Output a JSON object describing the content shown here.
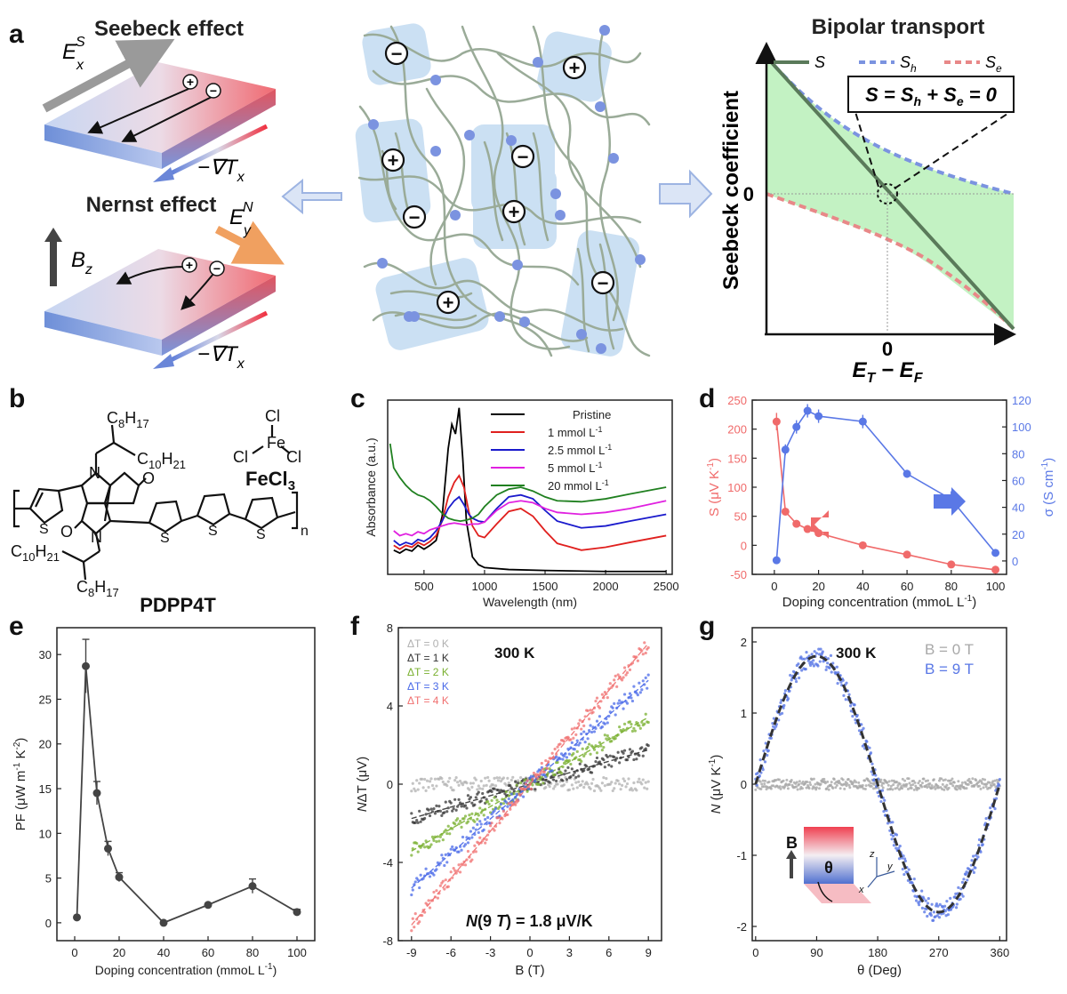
{
  "panel_labels": [
    "a",
    "b",
    "c",
    "d",
    "e",
    "f",
    "g"
  ],
  "panel_a": {
    "seebeck_title": "Seebeck effect",
    "nernst_title": "Nernst effect",
    "field_Ex": "E",
    "field_Ex_sup": "S",
    "field_Ex_sub": "x",
    "field_Ey": "E",
    "field_Ey_sup": "N",
    "field_Ey_sub": "y",
    "grad_T": "−∇T",
    "grad_T_sub": "x",
    "field_B": "B",
    "field_B_sub": "z",
    "plus_sign": "+",
    "minus_sign": "−",
    "bipolar_title": "Bipolar transport",
    "legend": [
      "S",
      "S",
      "S"
    ],
    "legend_sub": [
      "",
      "h",
      "e"
    ],
    "equation": "S = S",
    "equation_parts": [
      "S = S",
      "h",
      " + S",
      "e",
      " = 0"
    ],
    "ylabel": "Seebeck coefficient",
    "yzero": "0",
    "xzero": "0",
    "xlabel_parts": [
      "E",
      "T",
      " − E",
      "F"
    ],
    "colors": {
      "S": "#5a7a5a",
      "Sh": "#7b93e0",
      "Se": "#e88888",
      "fill": "#b8f0b8"
    }
  },
  "panel_b": {
    "polymer_name": "PDPP4T",
    "dopant_name": "FeCl",
    "dopant_sub": "3",
    "cl": "Cl",
    "fe": "Fe",
    "side_chain_1": "C",
    "c8h17": [
      "C",
      "8",
      "H",
      "17"
    ],
    "c10h21": [
      "C",
      "10",
      "H",
      "21"
    ],
    "s_atom": "S",
    "n_atom": "N",
    "o_atom": "O",
    "repeat_n": "n"
  },
  "chart_data": [
    {
      "id": "c",
      "type": "line",
      "xlabel": "Wavelength (nm)",
      "ylabel": "Absorbance (a.u.)",
      "xlim": [
        200,
        2550
      ],
      "xticks": [
        500,
        1000,
        1500,
        2000,
        2500
      ],
      "series": [
        {
          "name": "Pristine",
          "color": "#000000",
          "x": [
            250,
            300,
            350,
            400,
            450,
            500,
            550,
            600,
            650,
            700,
            730,
            760,
            790,
            820,
            850,
            900,
            950,
            1000,
            1200,
            1500,
            2000,
            2500
          ],
          "y": [
            0.25,
            0.22,
            0.26,
            0.24,
            0.3,
            0.26,
            0.3,
            0.35,
            0.6,
            1.3,
            1.55,
            1.45,
            1.72,
            1.2,
            0.55,
            0.18,
            0.1,
            0.07,
            0.05,
            0.04,
            0.03,
            0.03
          ]
        },
        {
          "name": "1 mmol L-1",
          "color": "#e0201e",
          "x": [
            250,
            300,
            350,
            400,
            450,
            500,
            550,
            600,
            650,
            700,
            750,
            790,
            830,
            870,
            900,
            950,
            1000,
            1100,
            1200,
            1300,
            1400,
            1500,
            1600,
            1800,
            2000,
            2200,
            2500
          ],
          "y": [
            0.3,
            0.26,
            0.3,
            0.28,
            0.33,
            0.3,
            0.34,
            0.4,
            0.55,
            0.8,
            0.95,
            1.02,
            0.9,
            0.65,
            0.5,
            0.4,
            0.38,
            0.52,
            0.65,
            0.68,
            0.6,
            0.45,
            0.32,
            0.25,
            0.28,
            0.33,
            0.4
          ]
        },
        {
          "name": "2.5 mmol L-1",
          "color": "#1a1acc",
          "x": [
            250,
            300,
            350,
            400,
            450,
            500,
            550,
            600,
            650,
            700,
            750,
            790,
            830,
            870,
            900,
            950,
            1000,
            1100,
            1200,
            1300,
            1400,
            1500,
            1600,
            1800,
            2000,
            2200,
            2500
          ],
          "y": [
            0.35,
            0.3,
            0.33,
            0.31,
            0.36,
            0.34,
            0.38,
            0.45,
            0.55,
            0.68,
            0.76,
            0.8,
            0.72,
            0.62,
            0.58,
            0.55,
            0.54,
            0.68,
            0.8,
            0.82,
            0.78,
            0.66,
            0.55,
            0.48,
            0.5,
            0.55,
            0.62
          ]
        },
        {
          "name": "5 mmol L-1",
          "color": "#e020e0",
          "x": [
            250,
            300,
            350,
            400,
            450,
            500,
            550,
            600,
            650,
            700,
            750,
            800,
            850,
            900,
            950,
            1000,
            1100,
            1200,
            1300,
            1400,
            1500,
            1600,
            1800,
            2000,
            2200,
            2500
          ],
          "y": [
            0.45,
            0.4,
            0.42,
            0.4,
            0.44,
            0.42,
            0.46,
            0.48,
            0.5,
            0.52,
            0.53,
            0.52,
            0.51,
            0.52,
            0.52,
            0.54,
            0.66,
            0.74,
            0.76,
            0.74,
            0.68,
            0.64,
            0.62,
            0.64,
            0.68,
            0.76
          ]
        },
        {
          "name": "20 mmol L-1",
          "color": "#208020",
          "x": [
            220,
            250,
            300,
            350,
            400,
            450,
            500,
            550,
            600,
            650,
            700,
            750,
            800,
            850,
            900,
            950,
            1000,
            1100,
            1200,
            1300,
            1400,
            1500,
            1600,
            1800,
            2000,
            2200,
            2500
          ],
          "y": [
            1.35,
            1.1,
            1.0,
            0.92,
            0.86,
            0.82,
            0.8,
            0.76,
            0.7,
            0.63,
            0.58,
            0.56,
            0.55,
            0.56,
            0.58,
            0.62,
            0.7,
            0.82,
            0.88,
            0.9,
            0.86,
            0.8,
            0.76,
            0.75,
            0.78,
            0.83,
            0.9
          ]
        }
      ]
    },
    {
      "id": "d",
      "type": "line",
      "xlabel": "Doping concentration (mmoL L",
      "xlabel_sup": "-1",
      "xlabel_end": ")",
      "ylabel_left": "S (μV K",
      "ylabel_left_sup": "-1",
      "ylabel_left_end": ")",
      "ylabel_right": "σ (S cm",
      "ylabel_right_sup": "-1",
      "ylabel_right_end": ")",
      "xlim": [
        -10,
        105
      ],
      "xticks": [
        0,
        20,
        40,
        60,
        80,
        100
      ],
      "ylim_left": [
        -50,
        250
      ],
      "yticks_left": [
        -50,
        0,
        50,
        100,
        150,
        200,
        250
      ],
      "ylim_right": [
        -10,
        120
      ],
      "yticks_right": [
        0,
        20,
        40,
        60,
        80,
        100,
        120
      ],
      "series": [
        {
          "name": "S",
          "axis": "left",
          "color": "#f06a6a",
          "x": [
            1,
            5,
            10,
            15,
            20,
            40,
            60,
            80,
            100
          ],
          "y": [
            213,
            58,
            37,
            28,
            21,
            0,
            -16,
            -33,
            -42
          ],
          "err": [
            15,
            0,
            0,
            0,
            0,
            0,
            0,
            0,
            0
          ]
        },
        {
          "name": "σ",
          "axis": "right",
          "color": "#5a78e6",
          "x": [
            1,
            5,
            10,
            15,
            20,
            40,
            60,
            80,
            100
          ],
          "y": [
            0.5,
            83,
            100,
            112,
            108,
            104,
            65,
            46,
            6
          ],
          "err": [
            0,
            4,
            5,
            5,
            5,
            5,
            3,
            6,
            2
          ]
        }
      ]
    },
    {
      "id": "e",
      "type": "line",
      "xlabel": "Doping concentration (mmoL L",
      "xlabel_sup": "-1",
      "xlabel_end": ")",
      "ylabel": "PF (μW m",
      "ylabel_sup1": "-1",
      "ylabel_mid": " K",
      "ylabel_sup2": "-2",
      "ylabel_end": ")",
      "xlim": [
        -8,
        108
      ],
      "xticks": [
        0,
        20,
        40,
        60,
        80,
        100
      ],
      "ylim": [
        -2,
        33
      ],
      "yticks": [
        0,
        5,
        10,
        15,
        20,
        25,
        30
      ],
      "series": [
        {
          "name": "PF",
          "color": "#444444",
          "x": [
            1,
            5,
            10,
            15,
            20,
            40,
            60,
            80,
            100
          ],
          "y": [
            0.6,
            28.7,
            14.5,
            8.3,
            5.1,
            0.0,
            2.0,
            4.1,
            1.2
          ],
          "err": [
            0,
            3.0,
            1.3,
            0.8,
            0.5,
            0,
            0,
            0.8,
            0.3
          ]
        }
      ]
    },
    {
      "id": "f",
      "type": "scatter",
      "annotation": "300 K",
      "formula_parts": [
        "N",
        "(9 ",
        "T",
        ") = 1.8 μV/K"
      ],
      "xlabel": "B (T)",
      "ylabel_parts": [
        "N",
        "ΔT (μV)"
      ],
      "xlim": [
        -10,
        10
      ],
      "xticks": [
        -9,
        -6,
        -3,
        0,
        3,
        6,
        9
      ],
      "ylim": [
        -8,
        8
      ],
      "yticks": [
        -8,
        -4,
        0,
        4,
        8
      ],
      "series": [
        {
          "name": "ΔT = 0 K",
          "color": "#b0b0b0",
          "slope": 0.0
        },
        {
          "name": "ΔT = 1 K",
          "color": "#333333",
          "slope": 0.195
        },
        {
          "name": "ΔT = 2 K",
          "color": "#7ab030",
          "slope": 0.38
        },
        {
          "name": "ΔT = 3 K",
          "color": "#4a6ae8",
          "slope": 0.59
        },
        {
          "name": "ΔT = 4 K",
          "color": "#f07070",
          "slope": 0.8
        }
      ]
    },
    {
      "id": "g",
      "type": "scatter",
      "annotation": "300 K",
      "legend": [
        "B = 0 T",
        "B = 9 T"
      ],
      "inset_B": "B",
      "inset_theta": "θ",
      "axis_z": "z",
      "axis_y": "y",
      "axis_x": "x",
      "xlabel": "θ (Deg)",
      "ylabel_parts": [
        "N",
        " (μV K",
        "-1",
        ")"
      ],
      "xlim": [
        -5,
        370
      ],
      "xticks": [
        0,
        90,
        180,
        270,
        360
      ],
      "ylim": [
        -2.2,
        2.2
      ],
      "yticks": [
        -2,
        -1,
        0,
        1,
        2
      ],
      "amplitude": 1.8,
      "series": [
        {
          "name": "B = 0 T",
          "color": "#a8a8a8"
        },
        {
          "name": "B = 9 T",
          "color": "#5a78e6"
        }
      ]
    }
  ]
}
